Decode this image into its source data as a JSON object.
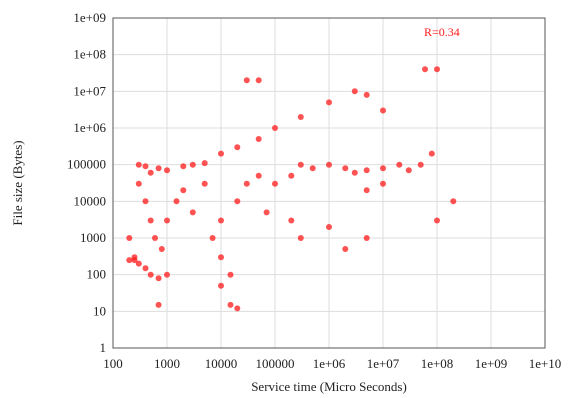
{
  "chart_data": {
    "type": "scatter",
    "title": "",
    "xlabel": "Service time (Micro Seconds)",
    "ylabel": "File size (Bytes)",
    "xscale": "log",
    "yscale": "log",
    "xlim": [
      100,
      10000000000
    ],
    "ylim": [
      1,
      1000000000
    ],
    "grid": true,
    "legend": "none",
    "annotation": "R=0.34",
    "point_color": "#ff1a1a",
    "x_ticks": [
      {
        "value": 100,
        "label": "100"
      },
      {
        "value": 1000,
        "label": "1000"
      },
      {
        "value": 10000,
        "label": "10000"
      },
      {
        "value": 100000,
        "label": "100000"
      },
      {
        "value": 1000000,
        "label": "1e+06"
      },
      {
        "value": 10000000,
        "label": "1e+07"
      },
      {
        "value": 100000000,
        "label": "1e+08"
      },
      {
        "value": 1000000000,
        "label": "1e+09"
      },
      {
        "value": 10000000000,
        "label": "1e+10"
      }
    ],
    "y_ticks": [
      {
        "value": 1,
        "label": "1"
      },
      {
        "value": 10,
        "label": "10"
      },
      {
        "value": 100,
        "label": "100"
      },
      {
        "value": 1000,
        "label": "1000"
      },
      {
        "value": 10000,
        "label": "10000"
      },
      {
        "value": 100000,
        "label": "100000"
      },
      {
        "value": 1000000,
        "label": "1e+06"
      },
      {
        "value": 10000000,
        "label": "1e+07"
      },
      {
        "value": 100000000,
        "label": "1e+08"
      },
      {
        "value": 1000000000,
        "label": "1e+09"
      }
    ],
    "points": [
      [
        300,
        100000
      ],
      [
        400,
        90000
      ],
      [
        500,
        60000
      ],
      [
        700,
        80000
      ],
      [
        1000,
        70000
      ],
      [
        2000,
        90000
      ],
      [
        3000,
        100000
      ],
      [
        5000,
        110000
      ],
      [
        10000,
        200000
      ],
      [
        20000,
        300000
      ],
      [
        50000,
        500000
      ],
      [
        100000,
        1000000
      ],
      [
        300000,
        2000000
      ],
      [
        1000000,
        5000000
      ],
      [
        3000000,
        10000000
      ],
      [
        5000000,
        8000000
      ],
      [
        10000000,
        3000000
      ],
      [
        300,
        30000
      ],
      [
        400,
        10000
      ],
      [
        500,
        3000
      ],
      [
        600,
        1000
      ],
      [
        800,
        500
      ],
      [
        1000,
        3000
      ],
      [
        1500,
        10000
      ],
      [
        2000,
        20000
      ],
      [
        3000,
        5000
      ],
      [
        5000,
        30000
      ],
      [
        7000,
        1000
      ],
      [
        10000,
        3000
      ],
      [
        10000,
        300
      ],
      [
        15000,
        100
      ],
      [
        20000,
        10000
      ],
      [
        30000,
        30000
      ],
      [
        50000,
        50000
      ],
      [
        70000,
        5000
      ],
      [
        100000,
        30000
      ],
      [
        200000,
        50000
      ],
      [
        300000,
        100000
      ],
      [
        500000,
        80000
      ],
      [
        1000000,
        100000
      ],
      [
        2000000,
        80000
      ],
      [
        3000000,
        60000
      ],
      [
        5000000,
        70000
      ],
      [
        10000000,
        80000
      ],
      [
        20000000,
        100000
      ],
      [
        30000000,
        70000
      ],
      [
        50000000,
        100000
      ],
      [
        80000000,
        200000
      ],
      [
        200,
        1000
      ],
      [
        250,
        300
      ],
      [
        300,
        200
      ],
      [
        400,
        150
      ],
      [
        500,
        100
      ],
      [
        700,
        80
      ],
      [
        1000,
        100
      ],
      [
        10000,
        50
      ],
      [
        15000,
        15
      ],
      [
        20000,
        12
      ],
      [
        700,
        15
      ],
      [
        250,
        250
      ],
      [
        200,
        250
      ],
      [
        5000000,
        20000
      ],
      [
        10000000,
        30000
      ],
      [
        1000000,
        2000
      ],
      [
        300000,
        1000
      ],
      [
        200000,
        3000
      ],
      [
        30000,
        20000000
      ],
      [
        50000,
        20000000
      ],
      [
        60000000,
        40000000
      ],
      [
        100000000,
        40000000
      ],
      [
        2000000,
        500
      ],
      [
        5000000,
        1000
      ],
      [
        100000000,
        3000
      ],
      [
        200000000,
        10000
      ]
    ]
  }
}
